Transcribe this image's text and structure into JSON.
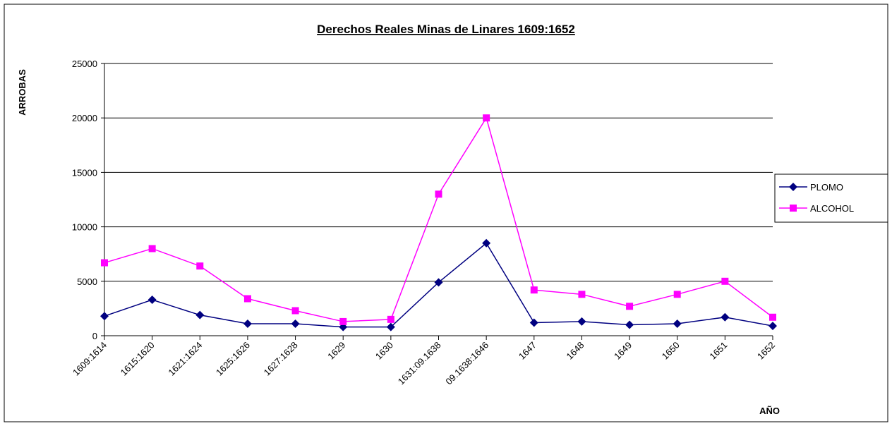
{
  "chart_data": {
    "type": "line",
    "title": "Derechos Reales Minas de Linares 1609:1652",
    "y_label": "ARROBAS",
    "x_label": "AÑO",
    "categories": [
      "1609:1614",
      "1615:1620",
      "1621:1624",
      "1625:1626",
      "1627:1628",
      "1629",
      "1630",
      "1631:09.1638",
      "09.1638:1646",
      "1647",
      "1648",
      "1649",
      "1650",
      "1651",
      "1652"
    ],
    "series": [
      {
        "name": "PLOMO",
        "color": "#000080",
        "marker": "diamond",
        "values": [
          1800,
          3300,
          1900,
          1100,
          1100,
          800,
          800,
          4900,
          8500,
          1200,
          1300,
          1000,
          1100,
          1700,
          900
        ]
      },
      {
        "name": "ALCOHOL",
        "color": "#ff00ff",
        "marker": "square",
        "values": [
          6700,
          8000,
          6400,
          3400,
          2300,
          1300,
          1500,
          13000,
          20000,
          4200,
          3800,
          2700,
          3800,
          5000,
          1700
        ]
      }
    ],
    "ylim": [
      0,
      25000
    ],
    "yticks": [
      0,
      5000,
      10000,
      15000,
      20000,
      25000
    ],
    "grid": true,
    "legend": "right"
  }
}
